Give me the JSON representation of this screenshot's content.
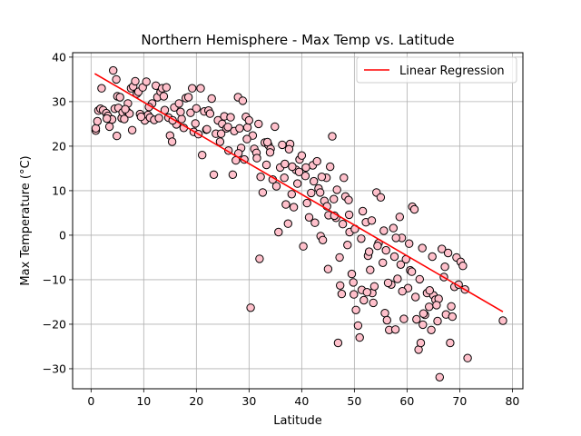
{
  "chart_data": {
    "type": "scatter",
    "title": "Northern Hemisphere - Max Temp vs. Latitude",
    "xlabel": "Latitude",
    "ylabel": "Max Temperature (°C)",
    "xlim": [
      -3.5,
      82
    ],
    "ylim": [
      -34.5,
      41
    ],
    "xticks": [
      0,
      10,
      20,
      30,
      40,
      50,
      60,
      70,
      80
    ],
    "yticks": [
      -30,
      -20,
      -10,
      0,
      10,
      20,
      30,
      40
    ],
    "grid": true,
    "legend": {
      "placement": "top-right",
      "entries": [
        "Linear Regression"
      ]
    },
    "colors": {
      "marker_fill": "#ffc0cb",
      "marker_edge": "#000000",
      "regression_line": "#ff0000",
      "grid": "#b0b0b0"
    },
    "regression": {
      "name": "Linear Regression",
      "x": [
        0.7,
        78.2
      ],
      "y": [
        36.3,
        -17.2
      ]
    },
    "points": [
      [
        0.9,
        23.5
      ],
      [
        0.9,
        24.0
      ],
      [
        1.2,
        25.6
      ],
      [
        1.4,
        28.0
      ],
      [
        1.8,
        28.4
      ],
      [
        2.0,
        33.0
      ],
      [
        2.3,
        28.1
      ],
      [
        2.9,
        27.4
      ],
      [
        3.2,
        26.8
      ],
      [
        3.5,
        24.4
      ],
      [
        4.0,
        26.0
      ],
      [
        4.2,
        37.0
      ],
      [
        4.5,
        28.4
      ],
      [
        4.8,
        35.0
      ],
      [
        4.9,
        22.3
      ],
      [
        5.0,
        31.2
      ],
      [
        5.2,
        28.6
      ],
      [
        5.5,
        31.0
      ],
      [
        5.8,
        26.3
      ],
      [
        6.0,
        27.6
      ],
      [
        6.3,
        26.1
      ],
      [
        6.8,
        27.8
      ],
      [
        7.0,
        29.6
      ],
      [
        7.3,
        27.3
      ],
      [
        7.6,
        33.0
      ],
      [
        8.0,
        33.4
      ],
      [
        8.4,
        34.6
      ],
      [
        8.7,
        31.8
      ],
      [
        9.0,
        32.2
      ],
      [
        9.3,
        27.2
      ],
      [
        9.8,
        33.2
      ],
      [
        10.2,
        25.8
      ],
      [
        10.5,
        34.5
      ],
      [
        10.8,
        27.0
      ],
      [
        11.2,
        26.4
      ],
      [
        11.6,
        29.6
      ],
      [
        12.0,
        25.9
      ],
      [
        12.3,
        33.6
      ],
      [
        12.6,
        31.0
      ],
      [
        12.9,
        26.3
      ],
      [
        13.2,
        32.2
      ],
      [
        13.5,
        33.0
      ],
      [
        13.8,
        31.2
      ],
      [
        14.0,
        28.1
      ],
      [
        14.3,
        33.2
      ],
      [
        14.7,
        26.4
      ],
      [
        15.0,
        22.4
      ],
      [
        15.4,
        21.0
      ],
      [
        15.8,
        28.7
      ],
      [
        16.2,
        24.9
      ],
      [
        16.7,
        29.6
      ],
      [
        17.2,
        26.1
      ],
      [
        17.6,
        24.1
      ],
      [
        18.0,
        30.8
      ],
      [
        18.5,
        31.0
      ],
      [
        18.9,
        27.5
      ],
      [
        19.2,
        33.0
      ],
      [
        19.5,
        23.2
      ],
      [
        20.0,
        28.5
      ],
      [
        20.4,
        22.7
      ],
      [
        20.8,
        33.0
      ],
      [
        21.1,
        18.0
      ],
      [
        21.5,
        27.8
      ],
      [
        21.9,
        23.7
      ],
      [
        22.3,
        28.0
      ],
      [
        22.6,
        27.3
      ],
      [
        22.9,
        30.7
      ],
      [
        23.3,
        13.6
      ],
      [
        23.7,
        22.8
      ],
      [
        24.1,
        25.8
      ],
      [
        24.5,
        21.0
      ],
      [
        24.9,
        25.0
      ],
      [
        25.3,
        26.7
      ],
      [
        25.7,
        24.0
      ],
      [
        26.1,
        19.0
      ],
      [
        26.5,
        26.5
      ],
      [
        26.9,
        13.6
      ],
      [
        27.2,
        23.4
      ],
      [
        27.5,
        16.8
      ],
      [
        27.9,
        31.0
      ],
      [
        28.2,
        24.0
      ],
      [
        28.5,
        19.6
      ],
      [
        28.8,
        30.2
      ],
      [
        29.1,
        17.0
      ],
      [
        29.4,
        26.6
      ],
      [
        29.7,
        24.2
      ],
      [
        30.0,
        25.8
      ],
      [
        30.3,
        -16.3
      ],
      [
        30.7,
        22.4
      ],
      [
        31.0,
        19.4
      ],
      [
        31.4,
        18.5
      ],
      [
        31.8,
        25.0
      ],
      [
        32.0,
        -5.3
      ],
      [
        32.2,
        13.1
      ],
      [
        32.6,
        9.6
      ],
      [
        33.0,
        20.8
      ],
      [
        33.3,
        15.8
      ],
      [
        33.7,
        20.2
      ],
      [
        34.1,
        19.4
      ],
      [
        34.5,
        12.5
      ],
      [
        34.9,
        24.4
      ],
      [
        35.2,
        11.0
      ],
      [
        35.6,
        0.7
      ],
      [
        35.9,
        15.2
      ],
      [
        36.3,
        20.3
      ],
      [
        36.7,
        12.9
      ],
      [
        37.0,
        6.9
      ],
      [
        37.4,
        2.6
      ],
      [
        37.8,
        20.5
      ],
      [
        38.1,
        9.2
      ],
      [
        38.5,
        6.3
      ],
      [
        38.9,
        14.7
      ],
      [
        39.2,
        11.6
      ],
      [
        39.6,
        17.0
      ],
      [
        40.0,
        17.9
      ],
      [
        40.3,
        -2.5
      ],
      [
        40.7,
        13.3
      ],
      [
        41.0,
        7.2
      ],
      [
        41.4,
        4.0
      ],
      [
        41.8,
        9.5
      ],
      [
        42.1,
        15.7
      ],
      [
        42.5,
        2.8
      ],
      [
        42.9,
        16.6
      ],
      [
        43.2,
        10.5
      ],
      [
        43.6,
        -0.2
      ],
      [
        44.0,
        -1.1
      ],
      [
        44.3,
        7.7
      ],
      [
        44.7,
        12.9
      ],
      [
        45.1,
        4.5
      ],
      [
        45.4,
        15.4
      ],
      [
        45.8,
        22.2
      ],
      [
        46.1,
        8.1
      ],
      [
        46.5,
        3.9
      ],
      [
        46.9,
        -24.2
      ],
      [
        47.2,
        -5.0
      ],
      [
        47.6,
        -13.2
      ],
      [
        48.0,
        12.9
      ],
      [
        48.3,
        8.7
      ],
      [
        48.7,
        -2.2
      ],
      [
        49.1,
        0.7
      ],
      [
        49.5,
        -8.7
      ],
      [
        49.9,
        -13.3
      ],
      [
        50.3,
        -16.8
      ],
      [
        50.7,
        -20.3
      ],
      [
        51.0,
        -23.0
      ],
      [
        51.4,
        -12.3
      ],
      [
        51.8,
        -14.6
      ],
      [
        52.2,
        2.9
      ],
      [
        52.6,
        -4.6
      ],
      [
        53.0,
        -7.8
      ],
      [
        53.4,
        -13.0
      ],
      [
        53.8,
        -11.5
      ],
      [
        54.2,
        9.6
      ],
      [
        54.6,
        -1.8
      ],
      [
        55.0,
        8.5
      ],
      [
        55.4,
        -6.2
      ],
      [
        55.8,
        -17.5
      ],
      [
        56.2,
        -19.1
      ],
      [
        56.6,
        -21.3
      ],
      [
        57.0,
        -11.1
      ],
      [
        57.4,
        1.6
      ],
      [
        57.8,
        -21.2
      ],
      [
        58.2,
        -9.8
      ],
      [
        58.6,
        4.1
      ],
      [
        59.0,
        -0.6
      ],
      [
        59.4,
        -18.8
      ],
      [
        59.8,
        -5.4
      ],
      [
        60.2,
        -11.9
      ],
      [
        60.6,
        -7.9
      ],
      [
        61.0,
        6.4
      ],
      [
        61.4,
        5.8
      ],
      [
        61.8,
        -18.9
      ],
      [
        62.2,
        -25.7
      ],
      [
        62.6,
        -24.2
      ],
      [
        63.0,
        -20.1
      ],
      [
        63.4,
        -17.9
      ],
      [
        63.8,
        -13.0
      ],
      [
        64.2,
        -16.1
      ],
      [
        64.6,
        -21.3
      ],
      [
        65.0,
        -13.5
      ],
      [
        65.4,
        -14.5
      ],
      [
        65.8,
        -19.3
      ],
      [
        66.2,
        -31.9
      ],
      [
        66.6,
        -3.1
      ],
      [
        67.0,
        -9.4
      ],
      [
        67.4,
        -17.8
      ],
      [
        67.8,
        -4.0
      ],
      [
        68.2,
        -24.2
      ],
      [
        68.6,
        -18.3
      ],
      [
        69.0,
        -11.6
      ],
      [
        69.4,
        -5.0
      ],
      [
        69.8,
        -11.1
      ],
      [
        70.2,
        -6.0
      ],
      [
        70.6,
        -6.9
      ],
      [
        71.0,
        -12.2
      ],
      [
        71.5,
        -27.6
      ],
      [
        78.2,
        -19.2
      ],
      [
        3.0,
        26.2
      ],
      [
        6.5,
        28.3
      ],
      [
        11.0,
        28.8
      ],
      [
        15.5,
        25.8
      ],
      [
        19.8,
        25.1
      ],
      [
        26.0,
        24.3
      ],
      [
        28.0,
        18.4
      ],
      [
        31.5,
        17.3
      ],
      [
        34.0,
        18.6
      ],
      [
        36.8,
        16.0
      ],
      [
        38.2,
        15.4
      ],
      [
        39.5,
        14.2
      ],
      [
        42.3,
        12.1
      ],
      [
        43.5,
        9.6
      ],
      [
        44.8,
        6.5
      ],
      [
        46.2,
        4.4
      ],
      [
        47.8,
        2.5
      ],
      [
        49.0,
        4.6
      ],
      [
        50.1,
        1.4
      ],
      [
        51.3,
        -0.8
      ],
      [
        52.8,
        -3.7
      ],
      [
        54.4,
        -2.4
      ],
      [
        56.0,
        -3.4
      ],
      [
        57.6,
        -4.8
      ],
      [
        58.8,
        -6.6
      ],
      [
        60.9,
        -8.2
      ],
      [
        62.4,
        -9.9
      ],
      [
        64.3,
        -12.4
      ],
      [
        66.0,
        -14.3
      ],
      [
        68.4,
        -16.0
      ],
      [
        45.0,
        -7.6
      ],
      [
        47.3,
        -11.3
      ],
      [
        49.8,
        -10.6
      ],
      [
        52.4,
        -12.8
      ],
      [
        53.6,
        -15.2
      ],
      [
        56.4,
        -10.7
      ],
      [
        59.1,
        -12.6
      ],
      [
        61.6,
        -13.9
      ],
      [
        63.1,
        -17.6
      ],
      [
        65.6,
        -15.7
      ],
      [
        7.8,
        23.6
      ],
      [
        9.5,
        26.6
      ],
      [
        17.0,
        27.7
      ],
      [
        22.0,
        23.8
      ],
      [
        24.7,
        22.8
      ],
      [
        29.6,
        21.6
      ],
      [
        33.5,
        20.9
      ],
      [
        37.6,
        19.3
      ],
      [
        40.8,
        15.2
      ],
      [
        43.8,
        13.1
      ],
      [
        46.7,
        10.2
      ],
      [
        48.9,
        7.9
      ],
      [
        51.6,
        5.4
      ],
      [
        53.3,
        3.3
      ],
      [
        55.6,
        1.0
      ],
      [
        57.9,
        -0.6
      ],
      [
        60.4,
        -1.9
      ],
      [
        62.9,
        -2.9
      ],
      [
        64.8,
        -4.8
      ],
      [
        67.2,
        -7.1
      ]
    ]
  }
}
